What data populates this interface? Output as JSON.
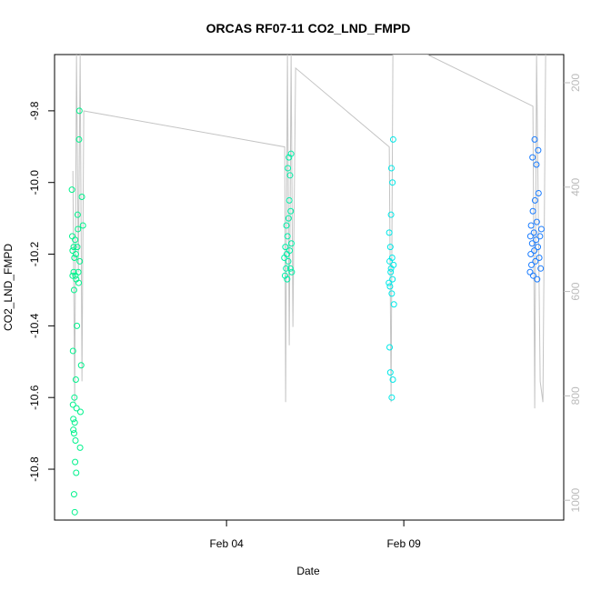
{
  "chart_data": {
    "type": "scatter",
    "title": "ORCAS RF07-11 CO2_LND_FMPD",
    "x_label": "Date",
    "y_label": "CO2_LND_FMPD",
    "xlim": [
      -0.85,
      13.51
    ],
    "xticks": [
      {
        "value": 4,
        "label": "Feb 04"
      },
      {
        "value": 9,
        "label": "Feb 09"
      }
    ],
    "ylim": [
      -10.942,
      -9.643
    ],
    "yticks": [
      -9.8,
      {
        "value": -10,
        "label": "-10.0"
      },
      -10.2,
      -10.4,
      -10.6,
      -10.8
    ],
    "y2lim": [
      1038,
      146
    ],
    "y2ticks": [
      200,
      400,
      600,
      800,
      1000
    ],
    "grid": false,
    "series": [
      {
        "color": "#00f28c",
        "x": [
          -0.36,
          -0.35,
          -0.34,
          -0.34,
          -0.33,
          -0.33,
          -0.32,
          -0.32,
          -0.31,
          -0.31,
          -0.3,
          -0.3,
          -0.3,
          -0.29,
          -0.29,
          -0.28,
          -0.28,
          -0.27,
          -0.27,
          -0.26,
          -0.26,
          -0.25,
          -0.25,
          -0.24,
          -0.24,
          -0.23,
          -0.22,
          -0.21,
          -0.2,
          -0.19,
          -0.18,
          -0.17,
          -0.16,
          -0.15,
          -0.14,
          -0.13,
          -0.12,
          -0.1,
          -0.08,
          -0.05
        ],
        "values": [
          -10.02,
          -10.15,
          -10.19,
          -10.26,
          -10.47,
          -10.62,
          -10.66,
          -10.69,
          -10.18,
          -10.25,
          -10.87,
          -10.3,
          -10.7,
          -10.21,
          -10.6,
          -10.67,
          -10.92,
          -10.16,
          -10.78,
          -10.26,
          -10.72,
          -10.2,
          -10.55,
          -10.81,
          -10.27,
          -10.63,
          -10.4,
          -10.18,
          -10.09,
          -10.13,
          -10.25,
          -10.28,
          -9.88,
          -9.8,
          -10.22,
          -10.74,
          -10.64,
          -10.51,
          -10.04,
          -10.12
        ]
      },
      {
        "color": "#00f0a8",
        "x": [
          5.63,
          5.65,
          5.66,
          5.68,
          5.69,
          5.7,
          5.71,
          5.72,
          5.73,
          5.74,
          5.75,
          5.76,
          5.77,
          5.78,
          5.79,
          5.8,
          5.81,
          5.82,
          5.83,
          5.84
        ],
        "values": [
          -10.21,
          -10.26,
          -10.18,
          -10.24,
          -10.12,
          -10.2,
          -10.27,
          -10.15,
          -9.96,
          -10.22,
          -10.1,
          -9.93,
          -10.05,
          -10.19,
          -9.98,
          -10.24,
          -10.08,
          -9.92,
          -10.17,
          -10.25
        ]
      },
      {
        "color": "#00e8e8",
        "x": [
          8.58,
          8.59,
          8.6,
          8.6,
          8.61,
          8.62,
          8.62,
          8.63,
          8.64,
          8.64,
          8.65,
          8.66,
          8.66,
          8.67,
          8.68,
          8.68,
          8.69,
          8.7,
          8.71,
          8.72
        ],
        "values": [
          -10.28,
          -10.14,
          -10.22,
          -10.46,
          -10.29,
          -10.18,
          -10.53,
          -10.25,
          -10.09,
          -10.24,
          -9.96,
          -10.31,
          -10.6,
          -10.21,
          -10.27,
          -10.0,
          -10.55,
          -9.88,
          -10.23,
          -10.34
        ]
      },
      {
        "color": "#1a7cff",
        "x": [
          12.56,
          12.57,
          12.58,
          12.59,
          12.6,
          12.62,
          12.63,
          12.64,
          12.65,
          12.67,
          12.68,
          12.69,
          12.7,
          12.71,
          12.73,
          12.74,
          12.75,
          12.76,
          12.78,
          12.79,
          12.8,
          12.82,
          12.84,
          12.86,
          12.88
        ],
        "values": [
          -10.25,
          -10.15,
          -10.2,
          -10.12,
          -10.23,
          -10.17,
          -9.93,
          -10.08,
          -10.26,
          -10.14,
          -10.19,
          -9.88,
          -10.05,
          -10.22,
          -10.16,
          -9.95,
          -10.11,
          -10.27,
          -10.18,
          -9.91,
          -10.03,
          -10.21,
          -10.15,
          -10.24,
          -10.13
        ]
      },
      {
        "type": "line",
        "axis": "y2",
        "color": "#c4c4c4",
        "x": [
          -0.333,
          -0.282,
          -0.231,
          -0.179,
          -0.128,
          -0.077,
          -0.026,
          5.641,
          5.667,
          5.718,
          5.769,
          5.821,
          5.872,
          5.949,
          8.59,
          8.641,
          8.692,
          9.667,
          12.641,
          12.692,
          12.744,
          12.846,
          12.923,
          13.0
        ],
        "values": [
          369,
          812,
          146,
          563,
          146,
          772,
          254,
          323,
          812,
          146,
          703,
          146,
          668,
          172,
          323,
          812,
          146,
          146,
          245,
          824,
          146,
          772,
          812,
          146
        ]
      }
    ]
  }
}
